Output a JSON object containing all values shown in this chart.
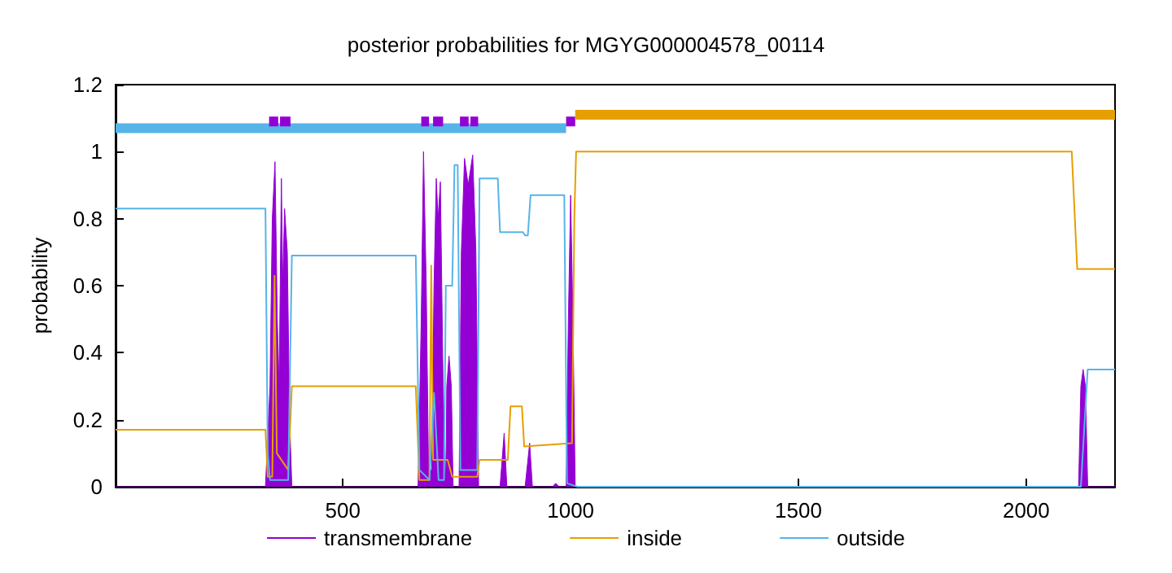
{
  "chart_data": {
    "type": "line",
    "title": "posterior probabilities for MGYG000004578_00114",
    "ylabel": "probability",
    "xlim": [
      1,
      2195
    ],
    "xticks": [
      500,
      1000,
      1500,
      2000
    ],
    "ylim": [
      0,
      1.2
    ],
    "yticks": [
      0,
      0.2,
      0.4,
      0.6,
      0.8,
      1,
      1.2
    ],
    "grid": false,
    "legend": "bottom",
    "marker": "none",
    "line_style": "solid",
    "series": [
      {
        "name": "transmembrane",
        "type": "area",
        "color": "#9400d3",
        "x": [
          1,
          330,
          340,
          345,
          351,
          356,
          360,
          365,
          368,
          372,
          378,
          383,
          388,
          665,
          672,
          677,
          683,
          688,
          695,
          700,
          705,
          709,
          714,
          720,
          726,
          728,
          733,
          738,
          742,
          755,
          760,
          767,
          775,
          785,
          792,
          798,
          845,
          854,
          860,
          900,
          910,
          916,
          960,
          967,
          975,
          990,
          995,
          1000,
          1005,
          1010,
          2115,
          2120,
          2125,
          2130,
          2135,
          2195
        ],
        "values": [
          0,
          0,
          0.3,
          0.8,
          0.97,
          0.5,
          0.3,
          0.92,
          0.6,
          0.83,
          0.7,
          0.2,
          0,
          0,
          0.5,
          1,
          0.6,
          0.05,
          0.05,
          0.6,
          0.92,
          0.8,
          0.91,
          0.3,
          0,
          0.3,
          0.39,
          0.3,
          0,
          0,
          0.7,
          0.98,
          0.9,
          0.99,
          0.7,
          0,
          0,
          0.16,
          0,
          0,
          0.13,
          0,
          0,
          0.01,
          0,
          0,
          0.5,
          0.87,
          0.5,
          0,
          0,
          0.3,
          0.35,
          0.3,
          0,
          0
        ]
      },
      {
        "name": "inside",
        "color": "#e69f00",
        "x": [
          1,
          330,
          335,
          345,
          350,
          355,
          380,
          388,
          660,
          668,
          690,
          694,
          698,
          730,
          740,
          795,
          800,
          862,
          868,
          893,
          898,
          1003,
          1008,
          1012,
          2100,
          2112,
          2195
        ],
        "values": [
          0.17,
          0.17,
          0.03,
          0.03,
          0.63,
          0.1,
          0.05,
          0.3,
          0.3,
          0.02,
          0.02,
          0.66,
          0.08,
          0.08,
          0.03,
          0.03,
          0.08,
          0.08,
          0.24,
          0.24,
          0.12,
          0.13,
          0.8,
          1,
          1,
          0.65,
          0.65
        ]
      },
      {
        "name": "outside",
        "color": "#56b4e9",
        "x": [
          1,
          330,
          335,
          340,
          380,
          388,
          660,
          668,
          690,
          700,
          710,
          722,
          726,
          740,
          745,
          752,
          758,
          795,
          800,
          840,
          845,
          895,
          900,
          906,
          912,
          986,
          992,
          1015,
          2120,
          2135,
          2195
        ],
        "values": [
          0.83,
          0.83,
          0.1,
          0.02,
          0.02,
          0.69,
          0.69,
          0.05,
          0.02,
          0.28,
          0.02,
          0.02,
          0.6,
          0.6,
          0.96,
          0.96,
          0.05,
          0.05,
          0.92,
          0.92,
          0.76,
          0.76,
          0.75,
          0.75,
          0.87,
          0.87,
          0.01,
          0,
          0,
          0.35,
          0.35
        ]
      },
      {
        "color": "#56b4e9",
        "x": [
          1,
          990
        ],
        "values": [
          1.07,
          1.07
        ]
      },
      {
        "color": "#9400d3",
        "x": [
          338,
          358,
          359,
          362,
          385,
          386,
          672,
          689,
          690,
          698,
          720,
          721,
          757,
          776,
          777,
          780,
          797,
          798,
          990,
          1010
        ],
        "values": [
          1.09,
          1.09,
          null,
          1.09,
          1.09,
          null,
          1.09,
          1.09,
          null,
          1.09,
          1.09,
          null,
          1.09,
          1.09,
          null,
          1.09,
          1.09,
          null,
          1.09,
          1.09
        ]
      },
      {
        "color": "#e69f00",
        "x": [
          1010,
          2195
        ],
        "values": [
          1.11,
          1.11
        ]
      }
    ]
  }
}
